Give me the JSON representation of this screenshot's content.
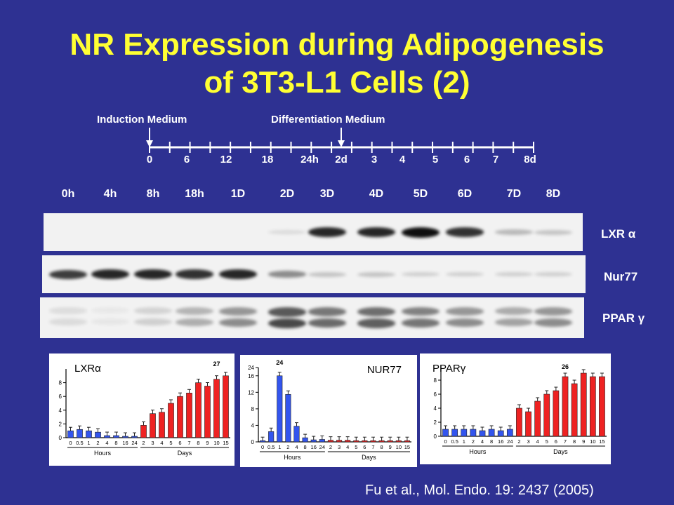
{
  "title": {
    "line1": "NR Expression during Adipogenesis",
    "line2": "of 3T3-L1 Cells (2)"
  },
  "timeline": {
    "induction_label": "Induction Medium",
    "differentiation_label": "Differentiation Medium",
    "labels": [
      "0",
      "6",
      "12",
      "18",
      "24h",
      "2d",
      "3",
      "4",
      "5",
      "6",
      "7",
      "8d"
    ]
  },
  "lanes": [
    "0h",
    "4h",
    "8h",
    "18h",
    "1D",
    "2D",
    "3D",
    "4D",
    "5D",
    "6D",
    "7D",
    "8D"
  ],
  "blots": {
    "lxr": {
      "label": "LXR α",
      "intensity": [
        0,
        0,
        0,
        0,
        0,
        0.1,
        0.9,
        0.9,
        1.0,
        0.85,
        0.25,
        0.2
      ]
    },
    "nur77": {
      "label": "Nur77",
      "intensity": [
        0.8,
        0.9,
        0.9,
        0.85,
        0.9,
        0.45,
        0.2,
        0.2,
        0.15,
        0.15,
        0.15,
        0.15
      ]
    },
    "pparg": {
      "label": "PPAR γ",
      "intensity": [
        0.1,
        0.05,
        0.15,
        0.3,
        0.45,
        0.75,
        0.6,
        0.65,
        0.55,
        0.45,
        0.35,
        0.45
      ]
    }
  },
  "chart_data": [
    {
      "type": "bar",
      "title": "LXRα",
      "categories": [
        "0",
        "0.5",
        "1",
        "2",
        "4",
        "8",
        "16",
        "24",
        "2",
        "3",
        "4",
        "5",
        "6",
        "7",
        "8",
        "9",
        "10",
        "15"
      ],
      "values": [
        1,
        1.2,
        1,
        0.8,
        0.3,
        0.3,
        0.2,
        0.2,
        1.8,
        3.5,
        3.7,
        5,
        6,
        6.5,
        8,
        7.5,
        8.5,
        9
      ],
      "colors": [
        "#3355ee",
        "#3355ee",
        "#3355ee",
        "#3355ee",
        "#3355ee",
        "#3355ee",
        "#3355ee",
        "#3355ee",
        "#ee2222",
        "#ee2222",
        "#ee2222",
        "#ee2222",
        "#ee2222",
        "#ee2222",
        "#ee2222",
        "#ee2222",
        "#ee2222",
        "#ee2222"
      ],
      "annotations": [
        "27"
      ],
      "group_labels": [
        "Hours",
        "Days"
      ]
    },
    {
      "type": "bar",
      "title": "NUR77",
      "categories": [
        "0",
        "0.5",
        "1",
        "2",
        "4",
        "8",
        "16",
        "24",
        "2",
        "3",
        "4",
        "5",
        "6",
        "7",
        "8",
        "9",
        "10",
        "15"
      ],
      "values": [
        0.3,
        2.5,
        16,
        11.5,
        3.8,
        1,
        0.5,
        0.6,
        0.4,
        0.4,
        0.4,
        0.3,
        0.3,
        0.3,
        0.3,
        0.3,
        0.3,
        0.3
      ],
      "colors": [
        "#3355ee",
        "#3355ee",
        "#3355ee",
        "#3355ee",
        "#3355ee",
        "#3355ee",
        "#3355ee",
        "#3355ee",
        "#ee2222",
        "#ee2222",
        "#ee2222",
        "#ee2222",
        "#ee2222",
        "#ee2222",
        "#ee2222",
        "#ee2222",
        "#ee2222",
        "#ee2222"
      ],
      "yticks": [
        "0",
        "4",
        "8",
        "12",
        "16",
        "24"
      ],
      "annotations": [
        "24"
      ],
      "group_labels": [
        "Hours",
        "Days"
      ]
    },
    {
      "type": "bar",
      "title": "PPARγ",
      "categories": [
        "0",
        "0.5",
        "1",
        "2",
        "4",
        "8",
        "16",
        "24",
        "2",
        "3",
        "4",
        "5",
        "6",
        "7",
        "8",
        "9",
        "10",
        "15"
      ],
      "values": [
        1,
        1,
        1,
        1,
        0.8,
        1,
        0.8,
        1,
        4,
        3.5,
        5,
        6,
        6.5,
        8.5,
        7.5,
        9,
        8.5,
        8.5
      ],
      "colors": [
        "#3355ee",
        "#3355ee",
        "#3355ee",
        "#3355ee",
        "#3355ee",
        "#3355ee",
        "#3355ee",
        "#3355ee",
        "#ee2222",
        "#ee2222",
        "#ee2222",
        "#ee2222",
        "#ee2222",
        "#ee2222",
        "#ee2222",
        "#ee2222",
        "#ee2222",
        "#ee2222"
      ],
      "yticks": [
        "0",
        "2",
        "4",
        "6",
        "8"
      ],
      "annotations": [
        "26"
      ],
      "group_labels": [
        "Hours",
        "Days"
      ]
    }
  ],
  "citation": "Fu et al., Mol. Endo. 19: 2437 (2005)"
}
